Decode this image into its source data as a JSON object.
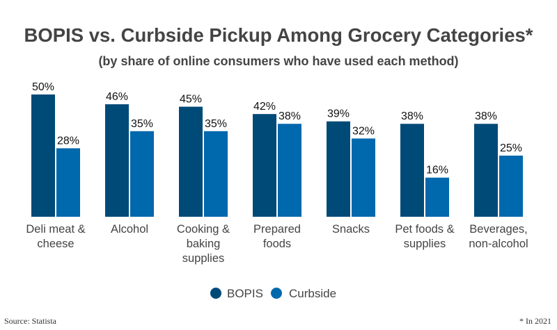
{
  "chart_data": {
    "type": "bar",
    "title": "BOPIS vs. Curbside Pickup Among Grocery Categories*",
    "subtitle": "(by share of online consumers who have used each method)",
    "categories": [
      [
        "Deli meat &",
        "cheese"
      ],
      [
        "Alcohol"
      ],
      [
        "Cooking &",
        "baking",
        "supplies"
      ],
      [
        "Prepared",
        "foods"
      ],
      [
        "Snacks"
      ],
      [
        "Pet foods &",
        "supplies"
      ],
      [
        "Beverages,",
        "non-alcohol"
      ]
    ],
    "series": [
      {
        "name": "BOPIS",
        "color": "#004a78",
        "values": [
          50,
          46,
          45,
          42,
          39,
          38,
          38
        ]
      },
      {
        "name": "Curbside",
        "color": "#0068ad",
        "values": [
          28,
          35,
          35,
          38,
          32,
          16,
          25
        ]
      }
    ],
    "value_suffix": "%",
    "ylim": [
      0,
      50
    ],
    "grid": false,
    "legend": "bottom",
    "source": "Source: Statista",
    "footnote": "* In 2021"
  }
}
